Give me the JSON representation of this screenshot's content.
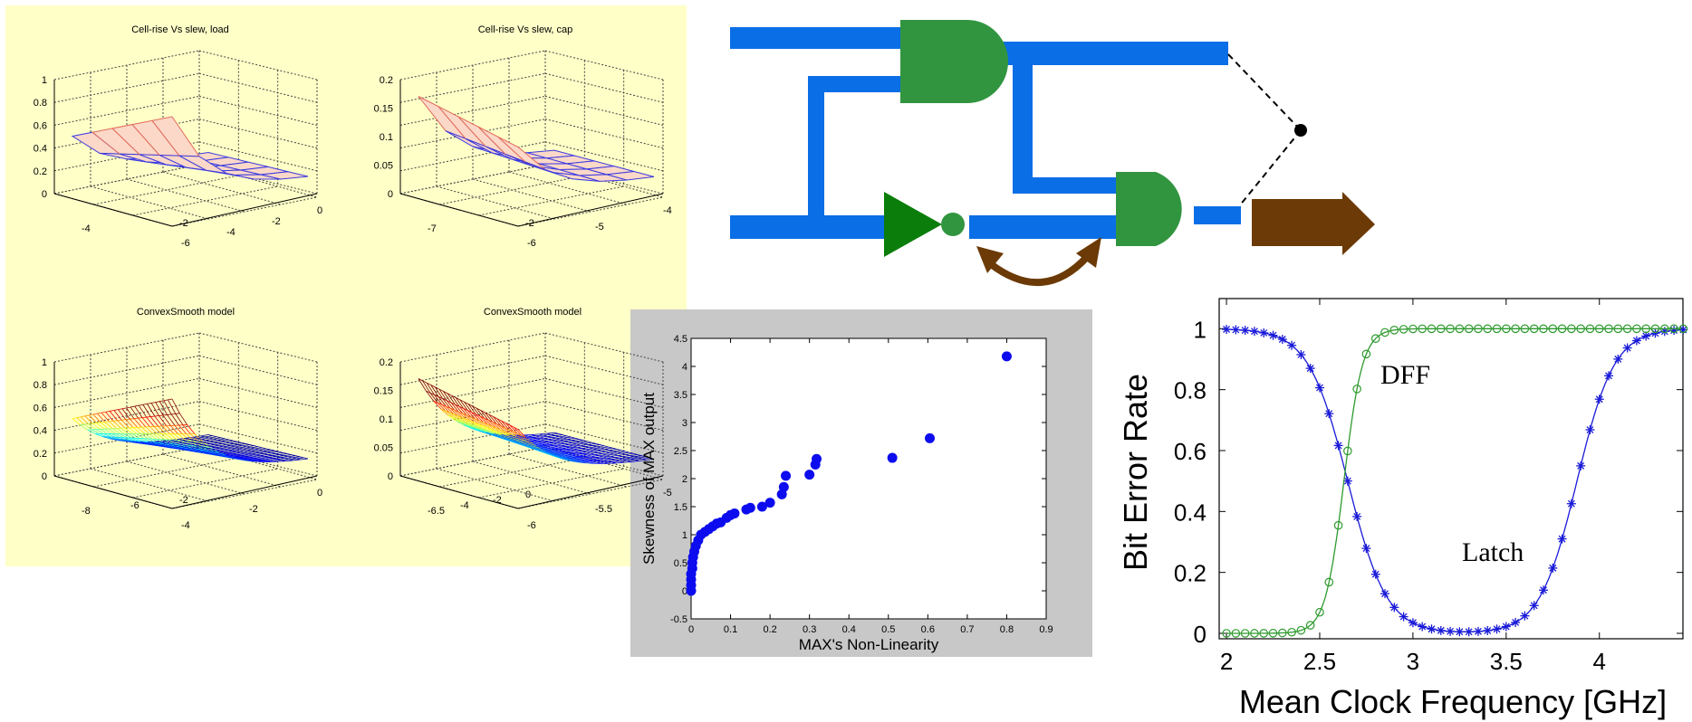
{
  "colors": {
    "panel_yellow": "#ffffc8",
    "panel_gray": "#c8c8c8",
    "wire_blue": "#0a6ee6",
    "gate_green": "#31953f",
    "inverter_green": "#0b7d0b",
    "arrow_brown": "#6b3a06",
    "scatter_blue": "#0c0cee",
    "latch_blue": "#1a1ad8",
    "dff_green": "#2e9a2e"
  },
  "surface_plots": {
    "titles": [
      "Cell-rise Vs slew, load",
      "Cell-rise Vs slew, cap",
      "ConvexSmooth model",
      "ConvexSmooth model"
    ],
    "z_ticks_left": [
      "0",
      "0.2",
      "0.4",
      "0.6",
      "0.8",
      "1"
    ],
    "z_ticks_right": [
      "0",
      "0.05",
      "0.1",
      "0.15",
      "0.2"
    ],
    "p1_axis_a": [
      "-4",
      "-2"
    ],
    "p1_axis_b": [
      "-6",
      "-4",
      "-2",
      "0"
    ],
    "p2_axis_a": [
      "-7",
      "-2"
    ],
    "p2_axis_b": [
      "-6",
      "-5",
      "-4"
    ],
    "p3_axis_a": [
      "-8",
      "-6",
      "-2"
    ],
    "p3_axis_b": [
      "-4",
      "-2",
      "0"
    ],
    "p4_axis_a": [
      "-6.5",
      "-4",
      "-2",
      "0"
    ],
    "p4_axis_b": [
      "-6",
      "-5.5",
      "-5"
    ]
  },
  "circuit": {
    "description_icons": [
      "and-gate-icon",
      "and-gate-icon",
      "inverter-icon",
      "output-arrow-icon",
      "curved-double-arrow-icon"
    ]
  },
  "chart_data": [
    {
      "type": "scatter",
      "title": "",
      "xlabel": "MAX's Non-Linearity",
      "ylabel": "Skewness of MAX output",
      "xlim": [
        0,
        0.9
      ],
      "ylim": [
        -0.5,
        4.5
      ],
      "x_ticks": [
        "0",
        "0.1",
        "0.2",
        "0.3",
        "0.4",
        "0.5",
        "0.6",
        "0.7",
        "0.8",
        "0.9"
      ],
      "y_ticks": [
        "-0.5",
        "0",
        "0.5",
        "1",
        "1.5",
        "2",
        "2.5",
        "3",
        "3.5",
        "4",
        "4.5"
      ],
      "grid": false,
      "points": [
        [
          0,
          0
        ],
        [
          0,
          0.1
        ],
        [
          0,
          0.2
        ],
        [
          0,
          0.3
        ],
        [
          0.003,
          0.4
        ],
        [
          0.003,
          0.5
        ],
        [
          0.005,
          0.6
        ],
        [
          0.008,
          0.7
        ],
        [
          0.012,
          0.8
        ],
        [
          0.018,
          0.9
        ],
        [
          0.025,
          1.0
        ],
        [
          0.035,
          1.05
        ],
        [
          0.045,
          1.1
        ],
        [
          0.055,
          1.15
        ],
        [
          0.065,
          1.2
        ],
        [
          0.075,
          1.22
        ],
        [
          0.09,
          1.3
        ],
        [
          0.1,
          1.35
        ],
        [
          0.11,
          1.38
        ],
        [
          0.14,
          1.45
        ],
        [
          0.15,
          1.48
        ],
        [
          0.18,
          1.5
        ],
        [
          0.2,
          1.57
        ],
        [
          0.23,
          1.72
        ],
        [
          0.235,
          1.85
        ],
        [
          0.24,
          2.05
        ],
        [
          0.3,
          2.07
        ],
        [
          0.315,
          2.25
        ],
        [
          0.318,
          2.35
        ],
        [
          0.51,
          2.37
        ],
        [
          0.605,
          2.72
        ],
        [
          0.8,
          4.18
        ]
      ]
    },
    {
      "type": "line",
      "title": "",
      "xlabel": "Mean Clock Frequency [GHz]",
      "ylabel": "Bit Error Rate",
      "xlim": [
        2,
        4.45
      ],
      "ylim": [
        0,
        1.1
      ],
      "x_ticks": [
        "2",
        "2.5",
        "3",
        "3.5",
        "4"
      ],
      "y_ticks": [
        "0",
        "0.2",
        "0.4",
        "0.6",
        "0.8",
        "1"
      ],
      "grid": false,
      "annotations": [
        "DFF",
        "Latch"
      ],
      "series": [
        {
          "name": "Latch",
          "marker": "asterisk",
          "x": [
            2.0,
            2.1,
            2.2,
            2.3,
            2.4,
            2.5,
            2.6,
            2.7,
            2.8,
            2.9,
            3.0,
            3.1,
            3.2,
            3.3,
            3.4,
            3.5,
            3.6,
            3.7,
            3.8,
            3.9,
            4.0,
            4.1,
            4.2,
            4.3,
            4.4
          ],
          "y": [
            1.0,
            0.99,
            0.96,
            0.88,
            0.75,
            0.62,
            0.48,
            0.35,
            0.24,
            0.15,
            0.08,
            0.04,
            0.02,
            0.01,
            0.01,
            0.01,
            0.04,
            0.12,
            0.3,
            0.55,
            0.78,
            0.93,
            0.99,
            1.0,
            1.0
          ]
        },
        {
          "name": "DFF",
          "marker": "circle",
          "x": [
            2.0,
            2.1,
            2.2,
            2.3,
            2.35,
            2.4,
            2.45,
            2.5,
            2.55,
            2.6,
            2.65,
            2.7,
            2.75,
            2.8,
            2.9,
            3.0,
            3.2,
            3.4,
            3.6,
            3.8,
            4.0,
            4.2,
            4.4
          ],
          "y": [
            0,
            0,
            0,
            0.01,
            0.02,
            0.04,
            0.08,
            0.15,
            0.27,
            0.44,
            0.62,
            0.78,
            0.9,
            0.97,
            1.0,
            1.0,
            1.0,
            1.0,
            1.0,
            1.0,
            1.0,
            1.0,
            1.0
          ]
        }
      ]
    }
  ]
}
